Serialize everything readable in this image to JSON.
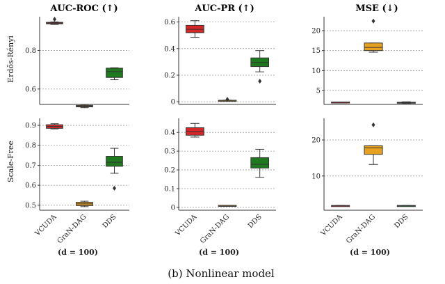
{
  "caption": "(b) Nonlinear model",
  "column_titles": [
    "AUC-ROC (↑)",
    "AUC-PR (↑)",
    "MSE (↓)"
  ],
  "row_labels": [
    "Erdős-Rényi",
    "Scale-Free"
  ],
  "xlabel_note": "(d = 100)",
  "colors": {
    "VCUDA": "#d62728",
    "GraN-DAG": "#e8a020",
    "DDS": "#1f7a1f"
  },
  "chart_data": [
    {
      "type": "box",
      "metric": "AUC-ROC (↑)",
      "graph": "Erdős-Rényi",
      "categories": [
        "VCUDA",
        "GraN-DAG",
        "DDS"
      ],
      "ylim": [
        0.52,
        0.975
      ],
      "yticks": [
        0.6,
        0.8
      ],
      "boxes": [
        {
          "name": "VCUDA",
          "min": 0.935,
          "q1": 0.938,
          "median": 0.942,
          "q3": 0.946,
          "max": 0.948,
          "outliers": [
            0.962
          ]
        },
        {
          "name": "GraN-DAG",
          "min": 0.503,
          "q1": 0.507,
          "median": 0.511,
          "q3": 0.515,
          "max": 0.519,
          "outliers": []
        },
        {
          "name": "DDS",
          "min": 0.648,
          "q1": 0.66,
          "median": 0.69,
          "q3": 0.708,
          "max": 0.71,
          "outliers": []
        }
      ]
    },
    {
      "type": "box",
      "metric": "AUC-PR (↑)",
      "graph": "Erdős-Rényi",
      "categories": [
        "VCUDA",
        "GraN-DAG",
        "DDS"
      ],
      "ylim": [
        -0.02,
        0.64
      ],
      "yticks": [
        0.0,
        0.2,
        0.4,
        0.6
      ],
      "boxes": [
        {
          "name": "VCUDA",
          "min": 0.485,
          "q1": 0.52,
          "median": 0.545,
          "q3": 0.575,
          "max": 0.61,
          "outliers": []
        },
        {
          "name": "GraN-DAG",
          "min": 0.008,
          "q1": 0.009,
          "median": 0.01,
          "q3": 0.011,
          "max": 0.012,
          "outliers": [
            0.018
          ]
        },
        {
          "name": "DDS",
          "min": 0.225,
          "q1": 0.265,
          "median": 0.295,
          "q3": 0.33,
          "max": 0.385,
          "outliers": [
            0.155
          ]
        }
      ]
    },
    {
      "type": "box",
      "metric": "MSE (↓)",
      "graph": "Erdős-Rényi",
      "categories": [
        "VCUDA",
        "GraN-DAG",
        "DDS"
      ],
      "ylim": [
        1.5,
        23.5
      ],
      "yticks": [
        5,
        10,
        15,
        20
      ],
      "boxes": [
        {
          "name": "VCUDA",
          "min": 2.1,
          "q1": 2.1,
          "median": 2.1,
          "q3": 2.1,
          "max": 2.1,
          "outliers": []
        },
        {
          "name": "GraN-DAG",
          "min": 14.6,
          "q1": 15.0,
          "median": 15.8,
          "q3": 16.9,
          "max": 16.9,
          "outliers": [
            22.4
          ]
        },
        {
          "name": "DDS",
          "min": 1.75,
          "q1": 1.85,
          "median": 1.95,
          "q3": 2.05,
          "max": 2.15,
          "outliers": []
        }
      ]
    },
    {
      "type": "box",
      "metric": "AUC-ROC (↑)",
      "graph": "Scale-Free",
      "categories": [
        "VCUDA",
        "GraN-DAG",
        "DDS"
      ],
      "ylim": [
        0.475,
        0.935
      ],
      "yticks": [
        0.5,
        0.6,
        0.7,
        0.8,
        0.9
      ],
      "boxes": [
        {
          "name": "VCUDA",
          "min": 0.882,
          "q1": 0.885,
          "median": 0.895,
          "q3": 0.903,
          "max": 0.908,
          "outliers": []
        },
        {
          "name": "GraN-DAG",
          "min": 0.493,
          "q1": 0.498,
          "median": 0.507,
          "q3": 0.515,
          "max": 0.52,
          "outliers": []
        },
        {
          "name": "DDS",
          "min": 0.66,
          "q1": 0.695,
          "median": 0.715,
          "q3": 0.745,
          "max": 0.785,
          "outliers": [
            0.585
          ]
        }
      ]
    },
    {
      "type": "box",
      "metric": "AUC-PR (↑)",
      "graph": "Scale-Free",
      "categories": [
        "VCUDA",
        "GraN-DAG",
        "DDS"
      ],
      "ylim": [
        -0.015,
        0.475
      ],
      "yticks": [
        0.0,
        0.1,
        0.2,
        0.3,
        0.4
      ],
      "boxes": [
        {
          "name": "VCUDA",
          "min": 0.375,
          "q1": 0.385,
          "median": 0.405,
          "q3": 0.425,
          "max": 0.448,
          "outliers": []
        },
        {
          "name": "GraN-DAG",
          "min": 0.009,
          "q1": 0.01,
          "median": 0.01,
          "q3": 0.011,
          "max": 0.011,
          "outliers": []
        },
        {
          "name": "DDS",
          "min": 0.16,
          "q1": 0.21,
          "median": 0.23,
          "q3": 0.265,
          "max": 0.31,
          "outliers": []
        }
      ]
    },
    {
      "type": "box",
      "metric": "MSE (↓)",
      "graph": "Scale-Free",
      "categories": [
        "VCUDA",
        "GraN-DAG",
        "DDS"
      ],
      "ylim": [
        0.5,
        26.0
      ],
      "yticks": [
        10,
        20
      ],
      "boxes": [
        {
          "name": "VCUDA",
          "min": 1.8,
          "q1": 1.8,
          "median": 1.8,
          "q3": 1.8,
          "max": 1.8,
          "outliers": []
        },
        {
          "name": "GraN-DAG",
          "min": 13.2,
          "q1": 16.0,
          "median": 17.8,
          "q3": 18.4,
          "max": 18.4,
          "outliers": [
            24.2
          ]
        },
        {
          "name": "DDS",
          "min": 1.8,
          "q1": 1.8,
          "median": 1.8,
          "q3": 1.8,
          "max": 1.8,
          "outliers": []
        }
      ]
    }
  ]
}
